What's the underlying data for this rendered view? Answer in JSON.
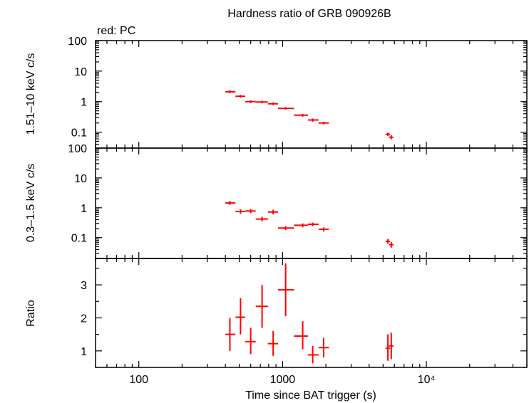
{
  "chart_data": {
    "type": "scatter",
    "title": "Hardness ratio of GRB 090926B",
    "subtitle": "red: PC",
    "xlabel": "Time since BAT trigger (s)",
    "xscale": "log",
    "xlim": [
      50,
      50000
    ],
    "x_ticks": [
      {
        "value": 100,
        "label": "100"
      },
      {
        "value": 1000,
        "label": "1000"
      },
      {
        "value": 10000,
        "label": "10⁴"
      }
    ],
    "series_color": "#ff0000",
    "panels": [
      {
        "id": "hard",
        "ylabel": "1.51–10 keV c/s",
        "yscale": "log",
        "ylim": [
          0.03,
          100
        ],
        "y_ticks": [
          {
            "value": 100,
            "label": "100"
          },
          {
            "value": 10,
            "label": "10"
          },
          {
            "value": 1,
            "label": "1"
          },
          {
            "value": 0.1,
            "label": "0.1"
          }
        ],
        "points": [
          {
            "x": 430,
            "x_lo": 400,
            "x_hi": 470,
            "y": 2.1,
            "y_lo": 1.9,
            "y_hi": 2.35
          },
          {
            "x": 510,
            "x_lo": 470,
            "x_hi": 550,
            "y": 1.5,
            "y_lo": 1.35,
            "y_hi": 1.65
          },
          {
            "x": 600,
            "x_lo": 550,
            "x_hi": 650,
            "y": 1.0,
            "y_lo": 0.9,
            "y_hi": 1.1
          },
          {
            "x": 720,
            "x_lo": 650,
            "x_hi": 790,
            "y": 0.97,
            "y_lo": 0.88,
            "y_hi": 1.07
          },
          {
            "x": 860,
            "x_lo": 790,
            "x_hi": 930,
            "y": 0.85,
            "y_lo": 0.77,
            "y_hi": 0.94
          },
          {
            "x": 1050,
            "x_lo": 930,
            "x_hi": 1200,
            "y": 0.6,
            "y_lo": 0.55,
            "y_hi": 0.66
          },
          {
            "x": 1380,
            "x_lo": 1200,
            "x_hi": 1500,
            "y": 0.36,
            "y_lo": 0.32,
            "y_hi": 0.4
          },
          {
            "x": 1620,
            "x_lo": 1500,
            "x_hi": 1780,
            "y": 0.25,
            "y_lo": 0.22,
            "y_hi": 0.28
          },
          {
            "x": 1930,
            "x_lo": 1780,
            "x_hi": 2100,
            "y": 0.2,
            "y_lo": 0.18,
            "y_hi": 0.22
          },
          {
            "x": 5400,
            "x_lo": 5200,
            "x_hi": 5600,
            "y": 0.085,
            "y_lo": 0.075,
            "y_hi": 0.096
          },
          {
            "x": 5700,
            "x_lo": 5500,
            "x_hi": 5900,
            "y": 0.068,
            "y_lo": 0.058,
            "y_hi": 0.079
          }
        ]
      },
      {
        "id": "soft",
        "ylabel": "0.3–1.5 keV c/s",
        "yscale": "log",
        "ylim": [
          0.02,
          100
        ],
        "y_ticks": [
          {
            "value": 100,
            "label": "100"
          },
          {
            "value": 10,
            "label": "10"
          },
          {
            "value": 1,
            "label": "1"
          },
          {
            "value": 0.1,
            "label": "0.1"
          }
        ],
        "points": [
          {
            "x": 430,
            "x_lo": 400,
            "x_hi": 470,
            "y": 1.45,
            "y_lo": 1.25,
            "y_hi": 1.7
          },
          {
            "x": 510,
            "x_lo": 470,
            "x_hi": 550,
            "y": 0.75,
            "y_lo": 0.63,
            "y_hi": 0.88
          },
          {
            "x": 600,
            "x_lo": 550,
            "x_hi": 650,
            "y": 0.78,
            "y_lo": 0.66,
            "y_hi": 0.92
          },
          {
            "x": 720,
            "x_lo": 650,
            "x_hi": 790,
            "y": 0.42,
            "y_lo": 0.35,
            "y_hi": 0.5
          },
          {
            "x": 860,
            "x_lo": 790,
            "x_hi": 930,
            "y": 0.72,
            "y_lo": 0.6,
            "y_hi": 0.86
          },
          {
            "x": 1050,
            "x_lo": 930,
            "x_hi": 1200,
            "y": 0.21,
            "y_lo": 0.18,
            "y_hi": 0.24
          },
          {
            "x": 1380,
            "x_lo": 1200,
            "x_hi": 1500,
            "y": 0.26,
            "y_lo": 0.22,
            "y_hi": 0.3
          },
          {
            "x": 1620,
            "x_lo": 1500,
            "x_hi": 1780,
            "y": 0.28,
            "y_lo": 0.24,
            "y_hi": 0.32
          },
          {
            "x": 1930,
            "x_lo": 1780,
            "x_hi": 2100,
            "y": 0.19,
            "y_lo": 0.16,
            "y_hi": 0.22
          },
          {
            "x": 5400,
            "x_lo": 5200,
            "x_hi": 5600,
            "y": 0.075,
            "y_lo": 0.062,
            "y_hi": 0.09
          },
          {
            "x": 5700,
            "x_lo": 5500,
            "x_hi": 5900,
            "y": 0.058,
            "y_lo": 0.046,
            "y_hi": 0.07
          }
        ]
      },
      {
        "id": "ratio",
        "ylabel": "Ratio",
        "yscale": "linear",
        "ylim": [
          0.5,
          3.8
        ],
        "y_ticks": [
          {
            "value": 1,
            "label": "1"
          },
          {
            "value": 2,
            "label": "2"
          },
          {
            "value": 3,
            "label": "3"
          }
        ],
        "points": [
          {
            "x": 430,
            "x_lo": 400,
            "x_hi": 470,
            "y": 1.5,
            "y_lo": 1.0,
            "y_hi": 2.0
          },
          {
            "x": 510,
            "x_lo": 470,
            "x_hi": 550,
            "y": 2.02,
            "y_lo": 1.5,
            "y_hi": 2.6
          },
          {
            "x": 600,
            "x_lo": 550,
            "x_hi": 650,
            "y": 1.28,
            "y_lo": 0.9,
            "y_hi": 1.7
          },
          {
            "x": 720,
            "x_lo": 650,
            "x_hi": 790,
            "y": 2.35,
            "y_lo": 1.7,
            "y_hi": 3.0
          },
          {
            "x": 860,
            "x_lo": 790,
            "x_hi": 930,
            "y": 1.22,
            "y_lo": 0.85,
            "y_hi": 1.6
          },
          {
            "x": 1050,
            "x_lo": 930,
            "x_hi": 1200,
            "y": 2.85,
            "y_lo": 2.05,
            "y_hi": 3.65
          },
          {
            "x": 1380,
            "x_lo": 1200,
            "x_hi": 1500,
            "y": 1.45,
            "y_lo": 1.05,
            "y_hi": 1.9
          },
          {
            "x": 1620,
            "x_lo": 1500,
            "x_hi": 1780,
            "y": 0.88,
            "y_lo": 0.62,
            "y_hi": 1.15
          },
          {
            "x": 1930,
            "x_lo": 1780,
            "x_hi": 2100,
            "y": 1.1,
            "y_lo": 0.8,
            "y_hi": 1.4
          },
          {
            "x": 5400,
            "x_lo": 5200,
            "x_hi": 5600,
            "y": 1.08,
            "y_lo": 0.7,
            "y_hi": 1.5
          },
          {
            "x": 5700,
            "x_lo": 5500,
            "x_hi": 5900,
            "y": 1.15,
            "y_lo": 0.75,
            "y_hi": 1.55
          }
        ]
      }
    ]
  }
}
